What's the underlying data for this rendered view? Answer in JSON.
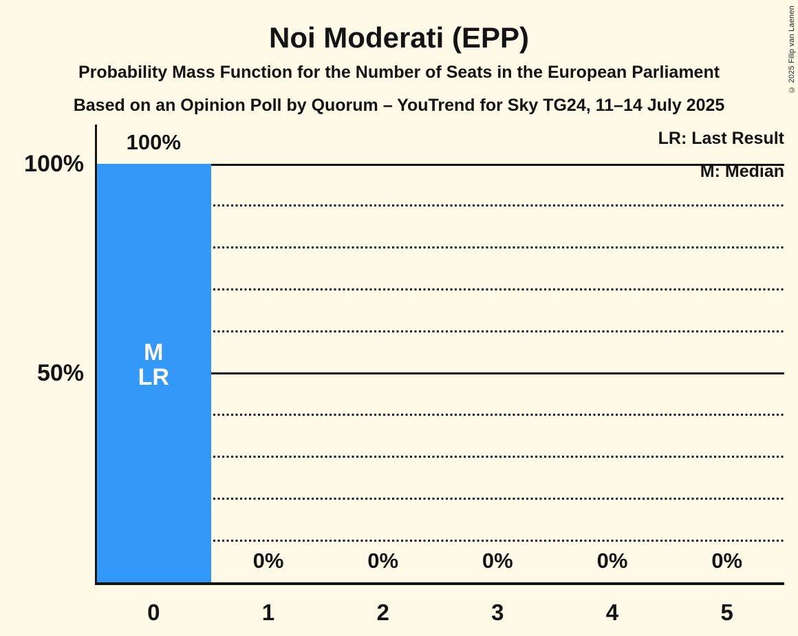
{
  "chart_data": {
    "type": "bar",
    "title": "Noi Moderati (EPP)",
    "subtitle": "Probability Mass Function for the Number of Seats in the European Parliament",
    "source_line": "Based on an Opinion Poll by Quorum – YouTrend for Sky TG24, 11–14 July 2025",
    "copyright": "© 2025 Filip van Laenen",
    "legend": [
      "LR: Last Result",
      "M: Median"
    ],
    "categories": [
      "0",
      "1",
      "2",
      "3",
      "4",
      "5"
    ],
    "values": [
      100,
      0,
      0,
      0,
      0,
      0
    ],
    "value_labels": [
      "100%",
      "0%",
      "0%",
      "0%",
      "0%",
      "0%"
    ],
    "xlabel": "",
    "ylabel": "",
    "ylim": [
      0,
      100
    ],
    "y_ticks": [
      {
        "value": 100,
        "label": "100%"
      },
      {
        "value": 50,
        "label": "50%"
      }
    ],
    "solid_gridlines": [
      50,
      100
    ],
    "dotted_gridlines": [
      10,
      20,
      30,
      40,
      60,
      70,
      80,
      90
    ],
    "grid": true,
    "legend_position": "top-right",
    "annotations": [
      {
        "category_index": 0,
        "lines": [
          "M",
          "LR"
        ],
        "meaning": [
          "Median",
          "Last Result"
        ]
      }
    ],
    "colors": {
      "bar": "#3399F8",
      "background": "#FFFAE7",
      "text": "#141414",
      "bar_annotation_text": "#FFFAE7"
    }
  }
}
